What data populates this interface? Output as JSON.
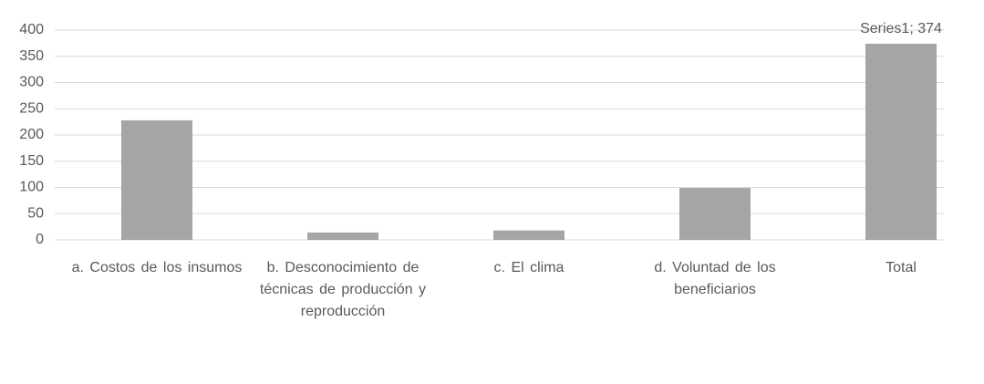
{
  "chart_data": {
    "type": "bar",
    "categories": [
      "a. Costos de los insumos",
      "b. Desconocimiento de técnicas de producción y reproducción",
      "c. El clima",
      "d. Voluntad de los beneficiarios",
      "Total"
    ],
    "values": [
      228,
      14,
      18,
      99,
      374
    ],
    "value_labels": [
      null,
      null,
      null,
      null,
      "Series1; 374"
    ],
    "color": "#a5a5a5",
    "ylim": [
      0,
      400
    ],
    "yticks": [
      0,
      50,
      100,
      150,
      200,
      250,
      300,
      350,
      400
    ],
    "grid": true
  }
}
